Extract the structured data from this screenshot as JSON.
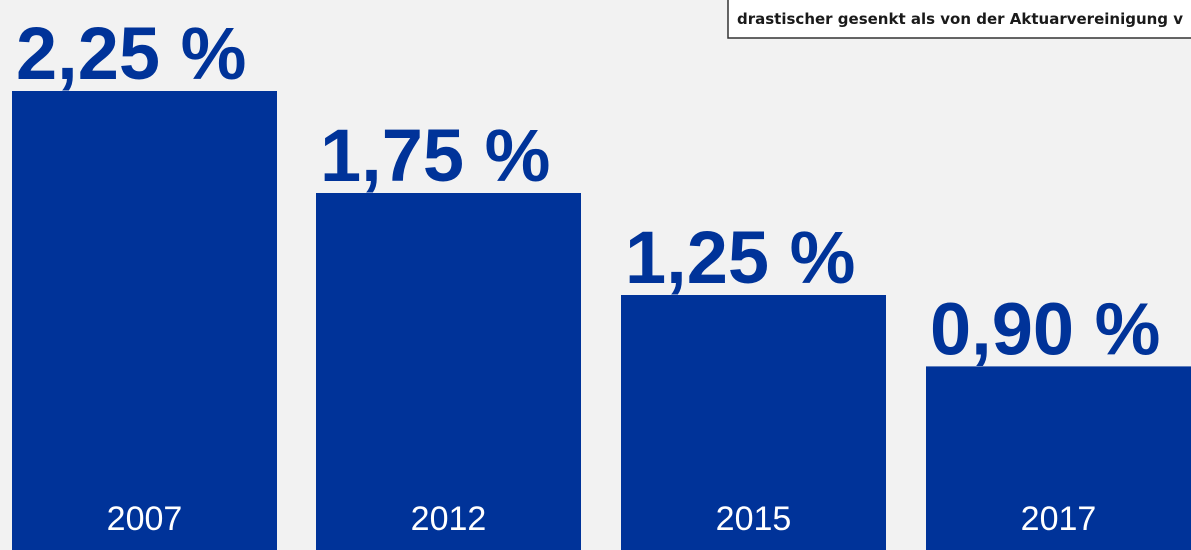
{
  "chart_data": {
    "type": "bar",
    "annotation": "drastischer gesenkt als von der Aktuarvereinigung v",
    "categories": [
      "2007",
      "2012",
      "2015",
      "2017"
    ],
    "values": [
      2.25,
      1.75,
      1.25,
      0.9
    ],
    "value_labels": [
      "2,25 %",
      "1,75 %",
      "1,25 %",
      "0,90 %"
    ],
    "color": "#003399"
  }
}
